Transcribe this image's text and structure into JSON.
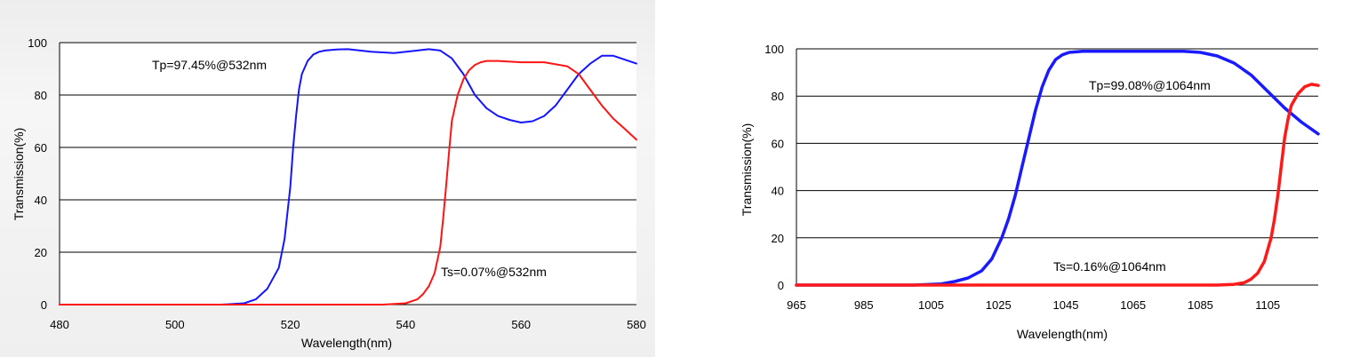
{
  "chart_data": [
    {
      "type": "line",
      "xlabel": "Wavelength(nm)",
      "ylabel": "Transmission(%)",
      "xlim": [
        480,
        580
      ],
      "ylim": [
        0,
        100
      ],
      "xticks": [
        "480",
        "500",
        "520",
        "540",
        "560",
        "580"
      ],
      "yticks": [
        "0",
        "20",
        "40",
        "60",
        "80",
        "100"
      ],
      "grid": "horizontal",
      "annotations": [
        "Tp=97.45%@532nm",
        "Ts=0.07%@532nm"
      ],
      "series": [
        {
          "color": "#1414ff",
          "x": [
            480,
            508,
            512,
            514,
            516,
            518,
            519,
            520,
            520.5,
            521,
            521.5,
            522,
            523,
            524,
            525,
            526,
            528,
            530,
            534,
            538,
            542,
            544,
            546,
            548,
            550,
            552,
            554,
            556,
            558,
            560,
            562,
            564,
            566,
            568,
            570,
            572,
            574,
            576,
            578,
            580
          ],
          "y": [
            0,
            0,
            0.5,
            2,
            6,
            14,
            25,
            45,
            60,
            72,
            82,
            88,
            93,
            95.5,
            96.5,
            97,
            97.4,
            97.5,
            96.5,
            96,
            97,
            97.5,
            97,
            94,
            88,
            80,
            75,
            72,
            70.5,
            69.5,
            70,
            72,
            76,
            82,
            88,
            92,
            95,
            95,
            93.5,
            92
          ]
        },
        {
          "color": "#ff1414",
          "x": [
            480,
            536,
            540,
            542,
            543,
            544,
            545,
            546,
            546.5,
            547,
            547.5,
            548,
            549,
            550,
            551,
            552,
            553,
            554,
            556,
            560,
            564,
            568,
            570,
            572,
            574,
            576,
            578,
            580
          ],
          "y": [
            0,
            0,
            0.5,
            2,
            4,
            7,
            12,
            22,
            33,
            45,
            58,
            70,
            80,
            86,
            89.5,
            91.5,
            92.5,
            93,
            93,
            92.5,
            92.5,
            91,
            88,
            82,
            76,
            71,
            67,
            63
          ]
        }
      ]
    },
    {
      "type": "line",
      "xlabel": "Wavelength(nm)",
      "ylabel": "Transmission(%)",
      "xlim": [
        965,
        1120
      ],
      "ylim": [
        0,
        100
      ],
      "xticks": [
        "965",
        "985",
        "1005",
        "1025",
        "1045",
        "1065",
        "1085",
        "1105"
      ],
      "yticks": [
        "0",
        "20",
        "40",
        "60",
        "80",
        "100"
      ],
      "grid": "horizontal",
      "annotations": [
        "Tp=99.08%@1064nm",
        "Ts=0.16%@1064nm"
      ],
      "series": [
        {
          "color": "#1a1aff",
          "x": [
            965,
            1000,
            1008,
            1012,
            1016,
            1020,
            1023,
            1026,
            1028,
            1030,
            1032,
            1034,
            1036,
            1038,
            1040,
            1042,
            1044,
            1046,
            1050,
            1060,
            1070,
            1080,
            1085,
            1090,
            1095,
            1100,
            1105,
            1110,
            1115,
            1120
          ],
          "y": [
            0,
            0,
            0.5,
            1.5,
            3,
            6,
            11,
            20,
            28,
            38,
            50,
            62,
            74,
            84,
            91,
            95.5,
            97.5,
            98.5,
            99,
            99,
            99,
            99,
            98.5,
            97,
            94,
            89,
            82,
            75,
            69,
            64
          ]
        },
        {
          "color": "#ff1a1a",
          "x": [
            965,
            1090,
            1095,
            1098,
            1100,
            1102,
            1104,
            1106,
            1107,
            1108,
            1109,
            1110,
            1111,
            1112,
            1114,
            1116,
            1118,
            1120
          ],
          "y": [
            0,
            0,
            0.3,
            1,
            2.5,
            5,
            10,
            20,
            28,
            38,
            50,
            62,
            70,
            76,
            81,
            84,
            85,
            84.5
          ]
        }
      ]
    }
  ]
}
